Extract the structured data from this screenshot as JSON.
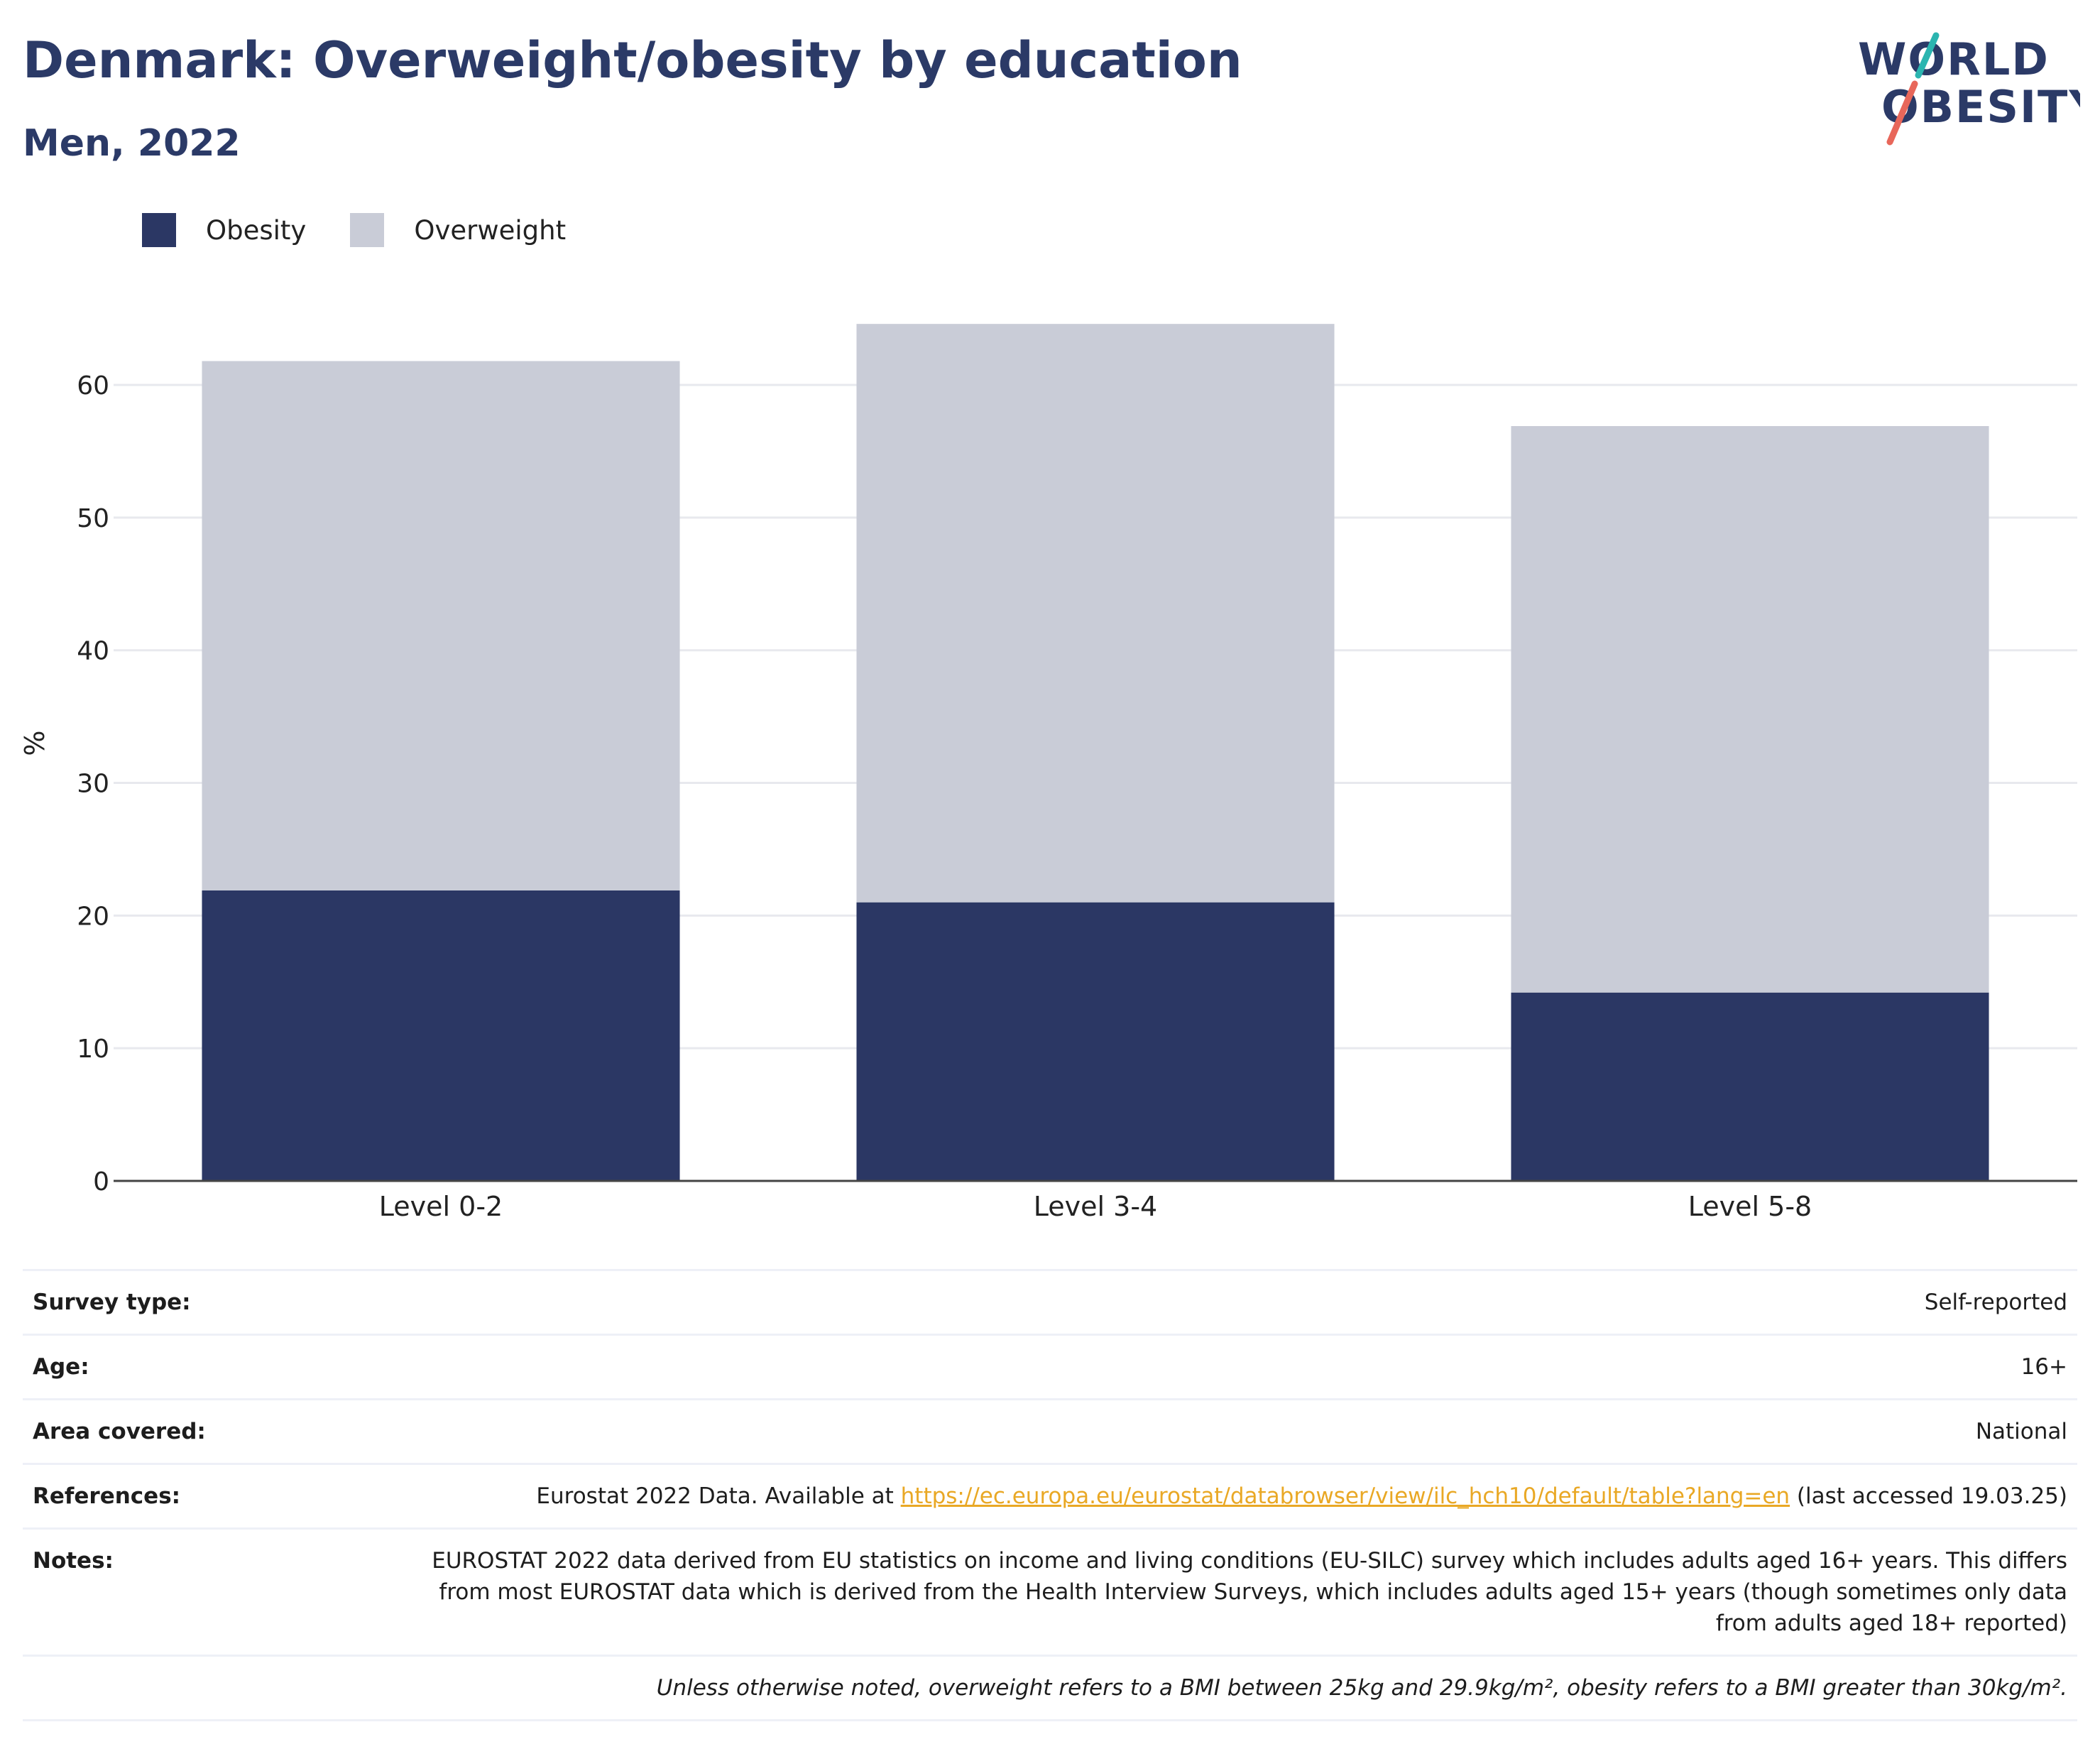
{
  "header": {
    "title": "Denmark: Overweight/obesity by education",
    "subtitle": "Men, 2022"
  },
  "logo": {
    "line1": "WORLD",
    "line2": "OBESITY",
    "accent_teal": "#2bb5b0",
    "accent_red": "#e8675a",
    "text_color": "#2b3a67"
  },
  "colors": {
    "obesity": "#2b3764",
    "overweight": "#c9ccd7",
    "title": "#2b3a67",
    "link": "#e9a825"
  },
  "legend": {
    "items": [
      {
        "label": "Obesity",
        "color": "#2b3764"
      },
      {
        "label": "Overweight",
        "color": "#c9ccd7"
      }
    ]
  },
  "chart_data": {
    "type": "bar",
    "stacked": true,
    "categories": [
      "Level 0-2",
      "Level 3-4",
      "Level 5-8"
    ],
    "series": [
      {
        "name": "Obesity",
        "values": [
          21.9,
          21.0,
          14.2
        ]
      },
      {
        "name": "Overweight",
        "values": [
          39.9,
          43.6,
          42.7
        ]
      }
    ],
    "ylabel": "%",
    "ylim": [
      0,
      66
    ],
    "yticks": [
      0,
      10,
      20,
      30,
      40,
      50,
      60
    ],
    "grid": true,
    "legend_position": "top-left"
  },
  "info": {
    "survey_type_label": "Survey type:",
    "survey_type_value": "Self-reported",
    "age_label": "Age:",
    "age_value": "16+",
    "area_label": "Area covered:",
    "area_value": "National",
    "references_label": "References:",
    "references_prefix": "Eurostat 2022 Data. Available at ",
    "references_link": "https://ec.europa.eu/eurostat/databrowser/view/ilc_hch10/default/table?lang=en",
    "references_suffix": " (last accessed 19.03.25)",
    "notes_label": "Notes:",
    "notes_value": "EUROSTAT 2022 data derived from EU statistics on income and living conditions (EU-SILC) survey which includes adults aged 16+ years. This differs from most EUROSTAT data which is derived from the Health Interview Surveys, which includes adults aged 15+ years (though sometimes only data from adults aged 18+ reported)",
    "disclaimer": "Unless otherwise noted, overweight refers to a BMI between 25kg and 29.9kg/m², obesity refers to a BMI greater than 30kg/m²."
  }
}
